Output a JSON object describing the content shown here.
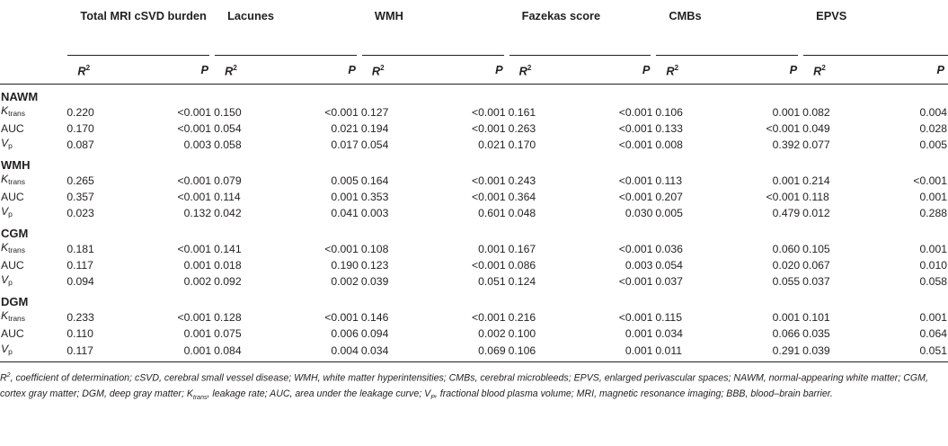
{
  "table": {
    "groups": [
      "Total MRI cSVD burden",
      "Lacunes",
      "WMH",
      "Fazekas score",
      "CMBs",
      "EPVS"
    ],
    "subheaders": {
      "r": "R",
      "r_sup": "2",
      "p": "P"
    },
    "sections": [
      {
        "name": "NAWM",
        "rows": [
          {
            "label": "K",
            "sub": "trans",
            "italic": true,
            "values": [
              "0.220",
              "<0.001",
              "0.150",
              "<0.001",
              "0.127",
              "<0.001",
              "0.161",
              "<0.001",
              "0.106",
              "0.001",
              "0.082",
              "0.004"
            ]
          },
          {
            "label": "AUC",
            "sub": "",
            "italic": false,
            "values": [
              "0.170",
              "<0.001",
              "0.054",
              "0.021",
              "0.194",
              "<0.001",
              "0.263",
              "<0.001",
              "0.133",
              "<0.001",
              "0.049",
              "0.028"
            ]
          },
          {
            "label": "V",
            "sub": "p",
            "italic": true,
            "values": [
              "0.087",
              "0.003",
              "0.058",
              "0.017",
              "0.054",
              "0.021",
              "0.170",
              "<0.001",
              "0.008",
              "0.392",
              "0.077",
              "0.005"
            ]
          }
        ]
      },
      {
        "name": "WMH",
        "rows": [
          {
            "label": "K",
            "sub": "trans",
            "italic": true,
            "values": [
              "0.265",
              "<0.001",
              "0.079",
              "0.005",
              "0.164",
              "<0.001",
              "0.243",
              "<0.001",
              "0.113",
              "0.001",
              "0.214",
              "<0.001"
            ]
          },
          {
            "label": "AUC",
            "sub": "",
            "italic": false,
            "values": [
              "0.357",
              "<0.001",
              "0.114",
              "0.001",
              "0.353",
              "<0.001",
              "0.364",
              "<0.001",
              "0.207",
              "<0.001",
              "0.118",
              "0.001"
            ]
          },
          {
            "label": "V",
            "sub": "p",
            "italic": true,
            "values": [
              "0.023",
              "0.132",
              "0.042",
              "0.041",
              "0.003",
              "0.601",
              "0.048",
              "0.030",
              "0.005",
              "0.479",
              "0.012",
              "0.288"
            ]
          }
        ]
      },
      {
        "name": "CGM",
        "rows": [
          {
            "label": "K",
            "sub": "trans",
            "italic": true,
            "values": [
              "0.181",
              "<0.001",
              "0.141",
              "<0.001",
              "0.108",
              "0.001",
              "0.167",
              "<0.001",
              "0.036",
              "0.060",
              "0.105",
              "0.001"
            ]
          },
          {
            "label": "AUC",
            "sub": "",
            "italic": false,
            "values": [
              "0.117",
              "0.001",
              "0.018",
              "0.190",
              "0.123",
              "<0.001",
              "0.086",
              "0.003",
              "0.054",
              "0.020",
              "0.067",
              "0.010"
            ]
          },
          {
            "label": "V",
            "sub": "p",
            "italic": true,
            "values": [
              "0.094",
              "0.002",
              "0.092",
              "0.002",
              "0.039",
              "0.051",
              "0.124",
              "<0.001",
              "0.037",
              "0.055",
              "0.037",
              "0.058"
            ]
          }
        ]
      },
      {
        "name": "DGM",
        "rows": [
          {
            "label": "K",
            "sub": "trans",
            "italic": true,
            "values": [
              "0.233",
              "<0.001",
              "0.128",
              "<0.001",
              "0.146",
              "<0.001",
              "0.216",
              "<0.001",
              "0.115",
              "0.001",
              "0.101",
              "0.001"
            ]
          },
          {
            "label": "AUC",
            "sub": "",
            "italic": false,
            "values": [
              "0.110",
              "0.001",
              "0.075",
              "0.006",
              "0.094",
              "0.002",
              "0.100",
              "0.001",
              "0.034",
              "0.066",
              "0.035",
              "0.064"
            ]
          },
          {
            "label": "V",
            "sub": "p",
            "italic": true,
            "values": [
              "0.117",
              "0.001",
              "0.084",
              "0.004",
              "0.034",
              "0.069",
              "0.106",
              "0.001",
              "0.011",
              "0.291",
              "0.039",
              "0.051"
            ]
          }
        ]
      }
    ]
  },
  "footnote": {
    "r_letter": "R",
    "r_sup": "2",
    "part1": ", coefficient of determination; cSVD, cerebral small vessel disease; WMH, white matter hyperintensities; CMBs, cerebral microbleeds; EPVS, enlarged perivascular spaces; NAWM, normal-appearing white matter; CGM, cortex gray matter; DGM, deep gray matter; K",
    "ktrans_sub": "trans",
    "part2": ", leakage rate; AUC, area under the leakage curve; V",
    "vp_sub": "P",
    "part3": ", fractional blood plasma volume; MRI, magnetic resonance imaging; BBB, blood–brain barrier."
  }
}
